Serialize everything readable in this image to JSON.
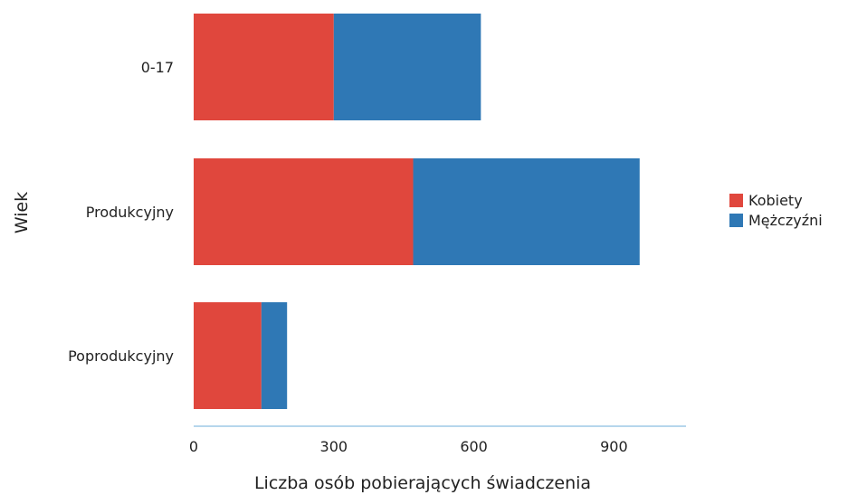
{
  "chart_data": {
    "type": "bar",
    "orientation": "horizontal",
    "stacked": true,
    "categories": [
      "0-17",
      "Produkcyjny",
      "Poprodukcyjny"
    ],
    "series": [
      {
        "name": "Kobiety",
        "values": [
          300,
          470,
          145
        ],
        "color": "#e0473d"
      },
      {
        "name": "Mężczyźni",
        "values": [
          315,
          485,
          55
        ],
        "color": "#2f78b5"
      }
    ],
    "xlabel": "Liczba osób pobierających świadczenia",
    "ylabel": "Wiek",
    "xlim": [
      0,
      1050
    ],
    "xticks": [
      0,
      300,
      600,
      900
    ],
    "xtick_labels": [
      "0",
      "300",
      "600",
      "900"
    ],
    "grid": false,
    "legend_position": "right"
  }
}
